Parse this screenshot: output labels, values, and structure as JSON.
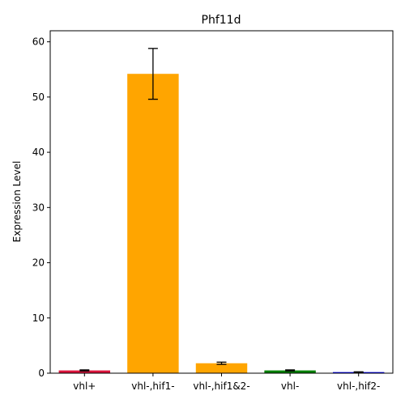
{
  "chart_data": {
    "type": "bar",
    "title": "Phf11d",
    "xlabel": "",
    "ylabel": "Expression Level",
    "categories": [
      "vhl+",
      "vhl-,hif1-",
      "vhl-,hif1&2-",
      "vhl-",
      "vhl-,hif2-"
    ],
    "values": [
      0.5,
      54.2,
      1.8,
      0.5,
      0.2
    ],
    "errors": [
      0.1,
      4.6,
      0.2,
      0.1,
      0.05
    ],
    "colors": [
      "#dc143c",
      "#ffa500",
      "#ffa500",
      "#008000",
      "#0000ff"
    ],
    "ylim": [
      0,
      62
    ],
    "yticks": [
      0,
      10,
      20,
      30,
      40,
      50,
      60
    ],
    "grid": false,
    "legend": "none"
  }
}
